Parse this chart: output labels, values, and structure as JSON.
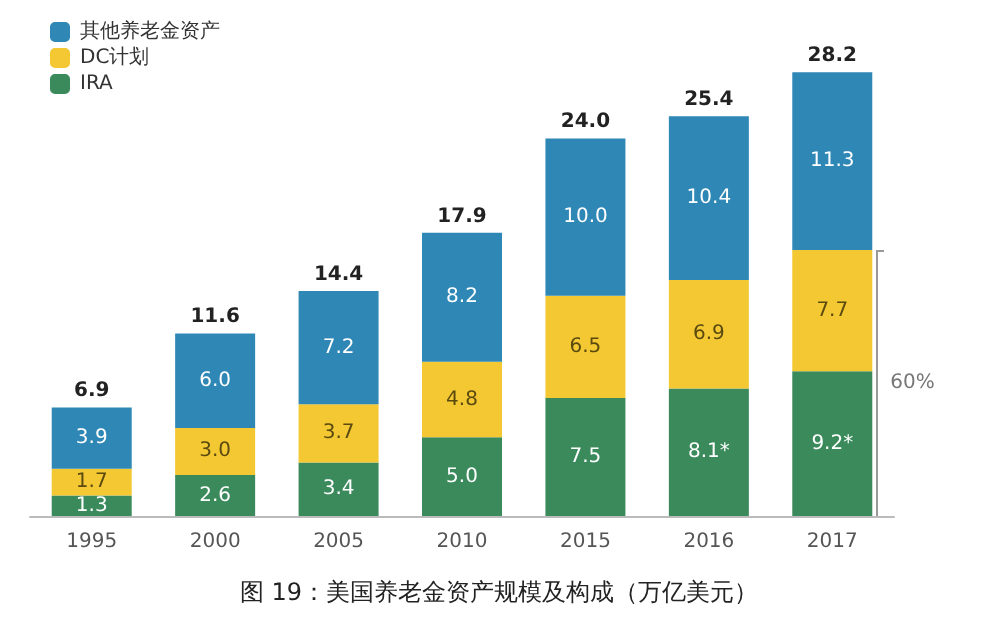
{
  "chart_data": {
    "type": "bar",
    "stacked": true,
    "title": "图 19：美国养老金资产规模及构成（万亿美元）",
    "categories": [
      "1995",
      "2000",
      "2005",
      "2010",
      "2015",
      "2016",
      "2017"
    ],
    "series": [
      {
        "name": "IRA",
        "color": "#3b8a5c",
        "values": [
          1.3,
          2.6,
          3.4,
          5.0,
          7.5,
          8.1,
          9.2
        ],
        "value_labels": [
          "1.3",
          "2.6",
          "3.4",
          "5.0",
          "7.5",
          "8.1*",
          "9.2*"
        ]
      },
      {
        "name": "DC计划",
        "color": "#f3c832",
        "values": [
          1.7,
          3.0,
          3.7,
          4.8,
          6.5,
          6.9,
          7.7
        ],
        "value_labels": [
          "1.7",
          "3.0",
          "3.7",
          "4.8",
          "6.5",
          "6.9",
          "7.7"
        ]
      },
      {
        "name": "其他养老金资产",
        "color": "#2f87b6",
        "values": [
          3.9,
          6.0,
          7.2,
          8.2,
          10.0,
          10.4,
          11.3
        ],
        "value_labels": [
          "3.9",
          "6.0",
          "7.2",
          "8.2",
          "10.0",
          "10.4",
          "11.3"
        ]
      }
    ],
    "totals": [
      "6.9",
      "11.6",
      "14.4",
      "17.9",
      "24.0",
      "25.4",
      "28.2"
    ],
    "annotations": [
      "60%"
    ],
    "legend": "top left"
  }
}
